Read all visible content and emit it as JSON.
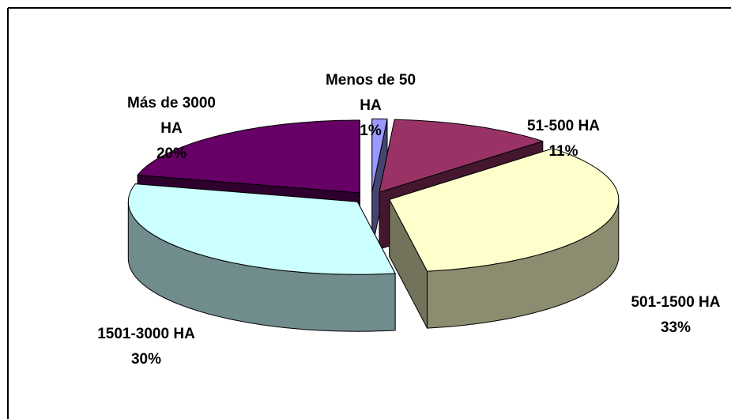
{
  "chart_data": {
    "type": "pie3d",
    "categories": [
      "Menos de 50 HA",
      "51-500 HA",
      "501-1500 HA",
      "1501-3000 HA",
      "Más de 3000 HA"
    ],
    "values": [
      1,
      11,
      33,
      30,
      20
    ],
    "value_labels": [
      "1%",
      "11%",
      "33%",
      "30%",
      "20%"
    ],
    "colors": [
      "#9999ff",
      "#993366",
      "#ffffcc",
      "#ccffff",
      "#660066"
    ]
  }
}
